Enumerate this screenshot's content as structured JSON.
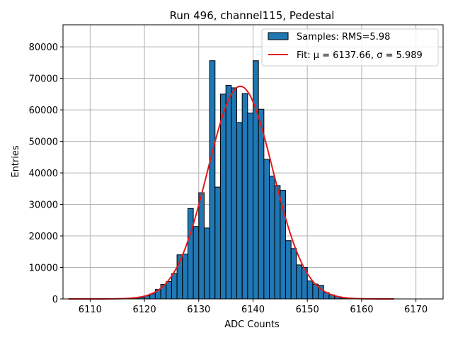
{
  "chart_data": {
    "type": "bar",
    "title": "Run 496, channel115, Pedestal",
    "xlabel": "ADC Counts",
    "ylabel": "Entries",
    "xlim": [
      6105,
      6175
    ],
    "ylim": [
      0,
      87000
    ],
    "xticks": [
      6110,
      6120,
      6130,
      6140,
      6150,
      6160,
      6170
    ],
    "yticks": [
      0,
      10000,
      20000,
      30000,
      40000,
      50000,
      60000,
      70000,
      80000
    ],
    "grid": true,
    "legend_position": "top-right",
    "colors": {
      "bars": "#1f77b4",
      "bar_edge": "#000000",
      "fit": "#e41a1c",
      "grid": "#b0b0b0"
    },
    "histogram": {
      "name": "Samples: RMS=5.98",
      "bins": [
        {
          "x0": 6118.0,
          "x1": 6119.0,
          "count": 300
        },
        {
          "x0": 6119.0,
          "x1": 6120.0,
          "count": 500
        },
        {
          "x0": 6120.0,
          "x1": 6121.0,
          "count": 1000
        },
        {
          "x0": 6121.0,
          "x1": 6122.0,
          "count": 1600
        },
        {
          "x0": 6122.0,
          "x1": 6123.0,
          "count": 3000
        },
        {
          "x0": 6123.0,
          "x1": 6124.0,
          "count": 4600
        },
        {
          "x0": 6124.0,
          "x1": 6125.0,
          "count": 5500
        },
        {
          "x0": 6125.0,
          "x1": 6126.0,
          "count": 8000
        },
        {
          "x0": 6126.0,
          "x1": 6127.0,
          "count": 14000
        },
        {
          "x0": 6127.0,
          "x1": 6128.0,
          "count": 14200
        },
        {
          "x0": 6128.0,
          "x1": 6129.0,
          "count": 28700
        },
        {
          "x0": 6129.0,
          "x1": 6130.0,
          "count": 23000
        },
        {
          "x0": 6130.0,
          "x1": 6131.0,
          "count": 33700
        },
        {
          "x0": 6131.0,
          "x1": 6132.0,
          "count": 22500
        },
        {
          "x0": 6132.0,
          "x1": 6133.0,
          "count": 75600
        },
        {
          "x0": 6133.0,
          "x1": 6134.0,
          "count": 35500
        },
        {
          "x0": 6134.0,
          "x1": 6135.0,
          "count": 65000
        },
        {
          "x0": 6135.0,
          "x1": 6136.0,
          "count": 67800
        },
        {
          "x0": 6136.0,
          "x1": 6137.0,
          "count": 67000
        },
        {
          "x0": 6137.0,
          "x1": 6138.0,
          "count": 56000
        },
        {
          "x0": 6138.0,
          "x1": 6139.0,
          "count": 65200
        },
        {
          "x0": 6139.0,
          "x1": 6140.0,
          "count": 59000
        },
        {
          "x0": 6140.0,
          "x1": 6141.0,
          "count": 75600
        },
        {
          "x0": 6141.0,
          "x1": 6142.0,
          "count": 60200
        },
        {
          "x0": 6142.0,
          "x1": 6143.0,
          "count": 44300
        },
        {
          "x0": 6143.0,
          "x1": 6144.0,
          "count": 39000
        },
        {
          "x0": 6144.0,
          "x1": 6145.0,
          "count": 36000
        },
        {
          "x0": 6145.0,
          "x1": 6146.0,
          "count": 34500
        },
        {
          "x0": 6146.0,
          "x1": 6147.0,
          "count": 18500
        },
        {
          "x0": 6147.0,
          "x1": 6148.0,
          "count": 16000
        },
        {
          "x0": 6148.0,
          "x1": 6149.0,
          "count": 10800
        },
        {
          "x0": 6149.0,
          "x1": 6150.0,
          "count": 10000
        },
        {
          "x0": 6150.0,
          "x1": 6151.0,
          "count": 5700
        },
        {
          "x0": 6151.0,
          "x1": 6152.0,
          "count": 4700
        },
        {
          "x0": 6152.0,
          "x1": 6153.0,
          "count": 4300
        },
        {
          "x0": 6153.0,
          "x1": 6154.0,
          "count": 2000
        },
        {
          "x0": 6154.0,
          "x1": 6155.0,
          "count": 1300
        },
        {
          "x0": 6155.0,
          "x1": 6156.0,
          "count": 700
        },
        {
          "x0": 6156.0,
          "x1": 6157.0,
          "count": 300
        }
      ]
    },
    "fit": {
      "name": "Fit: μ = 6137.66, σ = 5.989",
      "mu": 6137.66,
      "sigma": 5.989,
      "amplitude": 67500,
      "x_range": [
        6106,
        6166
      ]
    }
  }
}
